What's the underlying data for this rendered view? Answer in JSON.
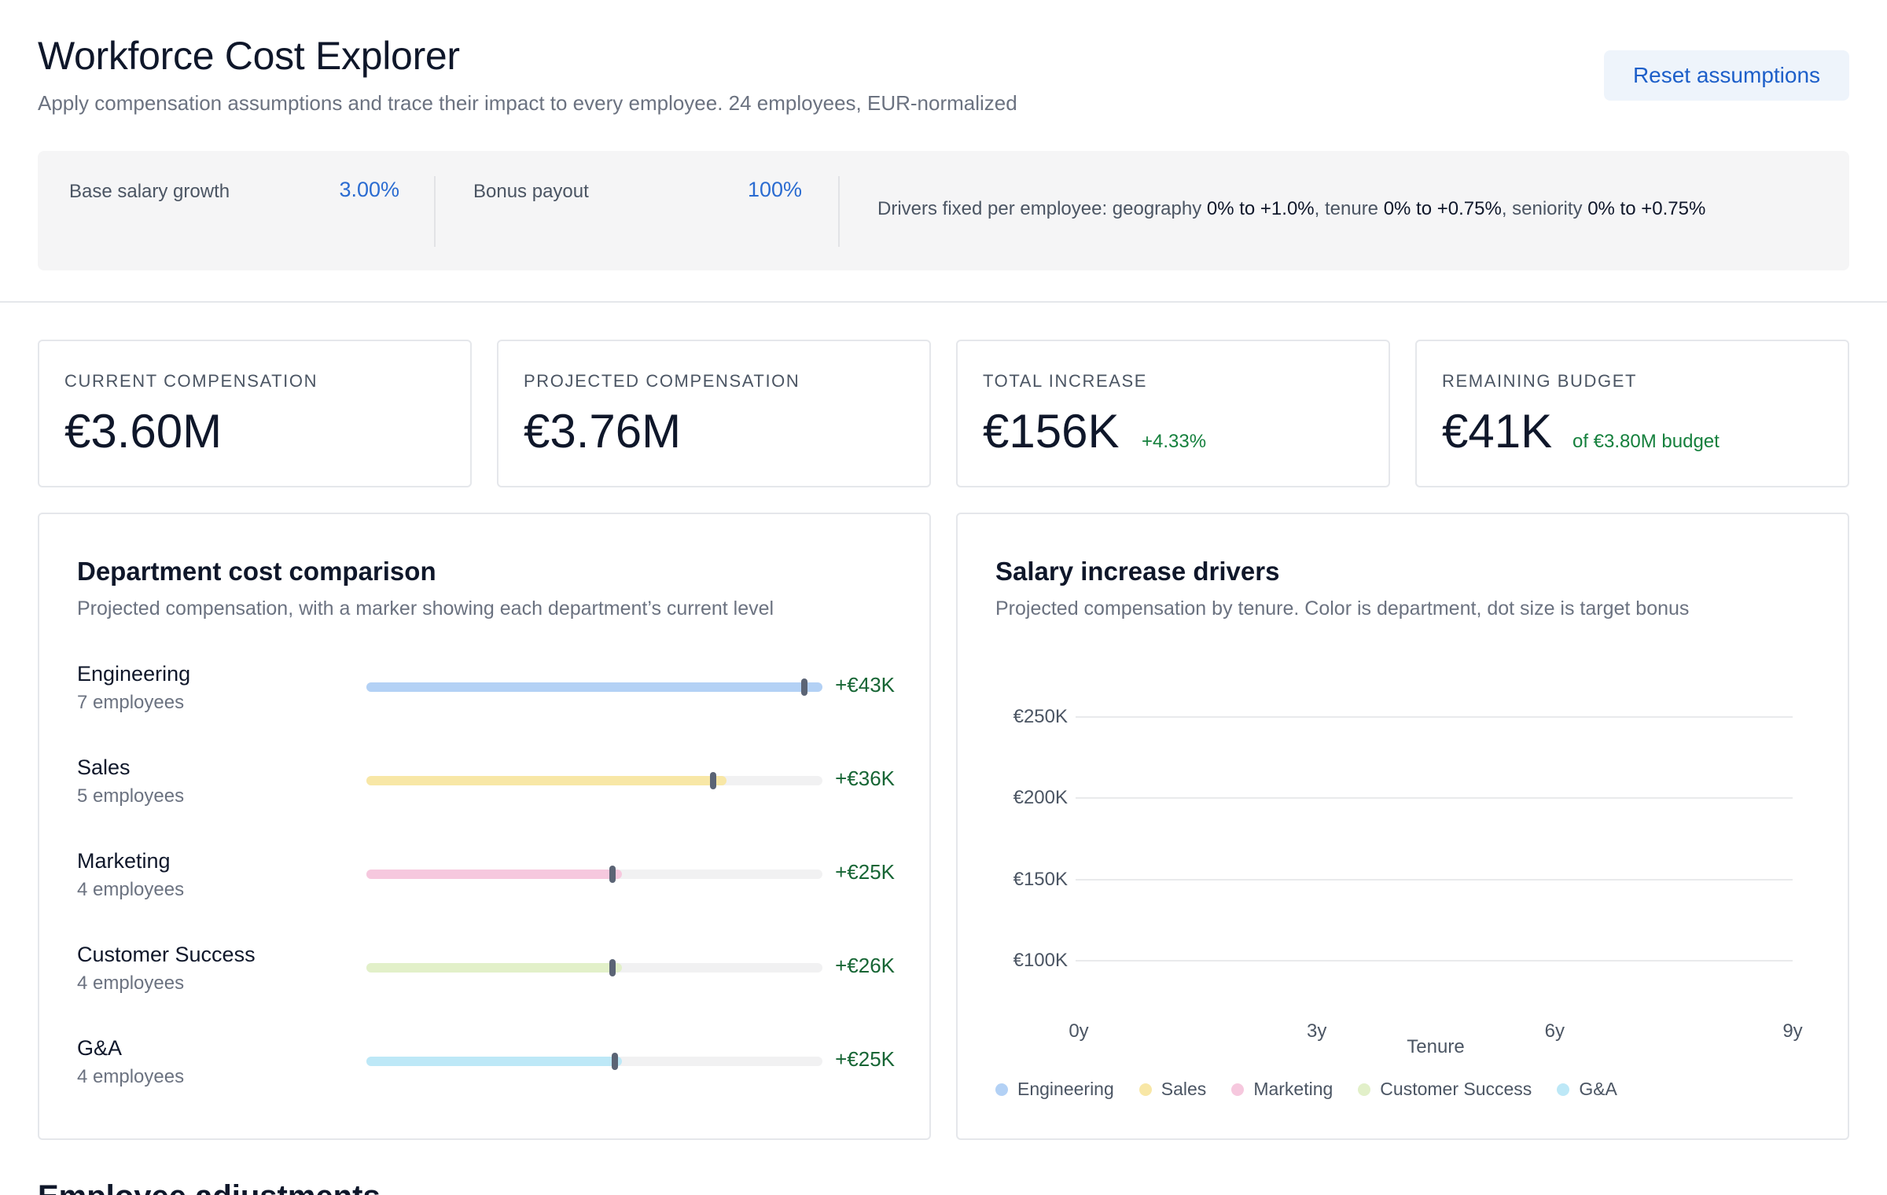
{
  "app": {
    "title": "Workforce Cost Explorer",
    "subtitle": "Apply compensation assumptions and trace their impact to every employee. 24 employees, EUR-normalized",
    "reset_label": "Reset assumptions"
  },
  "assumptions": {
    "salary_growth": {
      "label": "Base salary growth",
      "value": "3.00%"
    },
    "bonus_payout": {
      "label": "Bonus payout",
      "value": "100%"
    },
    "drivers": {
      "prefix": "Drivers fixed per employee: geography ",
      "geography_range": "0% to +1.0%",
      "tenure_label": ", tenure ",
      "tenure_range": "0% to +0.75%",
      "seniority_label": ", seniority ",
      "seniority_range": "0% to +0.75%"
    }
  },
  "kpis": {
    "current": {
      "label": "CURRENT COMPENSATION",
      "value": "€3.60M"
    },
    "projected": {
      "label": "PROJECTED COMPENSATION",
      "value": "€3.76M"
    },
    "increase": {
      "label": "TOTAL INCREASE",
      "value": "€156K",
      "delta": "+4.33%"
    },
    "remaining": {
      "label": "REMAINING BUDGET",
      "value": "€41K",
      "note": "of €3.80M budget"
    }
  },
  "dept_card": {
    "title": "Department cost comparison",
    "subtitle": "Projected compensation, with a marker showing each department’s current level",
    "departments": [
      {
        "name": "Engineering",
        "count": "7 employees",
        "delta": "+€43K",
        "color": "#b3d1f5",
        "projected_fraction": 1.0,
        "current_fraction": 0.96
      },
      {
        "name": "Sales",
        "count": "5 employees",
        "delta": "+€36K",
        "color": "#f8e7a6",
        "projected_fraction": 0.79,
        "current_fraction": 0.76
      },
      {
        "name": "Marketing",
        "count": "4 employees",
        "delta": "+€25K",
        "color": "#f6c8de",
        "projected_fraction": 0.56,
        "current_fraction": 0.54
      },
      {
        "name": "Customer Success",
        "count": "4 employees",
        "delta": "+€26K",
        "color": "#e2f0c9",
        "projected_fraction": 0.56,
        "current_fraction": 0.54
      },
      {
        "name": "G&A",
        "count": "4 employees",
        "delta": "+€25K",
        "color": "#bde8f7",
        "projected_fraction": 0.56,
        "current_fraction": 0.545
      }
    ]
  },
  "drivers_card": {
    "title": "Salary increase drivers",
    "subtitle": "Projected compensation by tenure. Color is department, dot size is target bonus"
  },
  "chart_data": {
    "type": "scatter",
    "title": "Salary increase drivers",
    "subtitle": "Projected compensation by tenure. Color is department, dot size is target bonus",
    "xlabel": "Tenure",
    "ylabel": "",
    "xlim": [
      0,
      9
    ],
    "ylim": [
      100000,
      250000
    ],
    "x_ticks": [
      {
        "value": 0,
        "label": "0y"
      },
      {
        "value": 3,
        "label": "3y"
      },
      {
        "value": 6,
        "label": "6y"
      },
      {
        "value": 9,
        "label": "9y"
      }
    ],
    "y_ticks": [
      {
        "value": 250000,
        "label": "€250K"
      },
      {
        "value": 200000,
        "label": "€200K"
      },
      {
        "value": 150000,
        "label": "€150K"
      },
      {
        "value": 100000,
        "label": "€100K"
      }
    ],
    "grid": true,
    "legend_position": "bottom-left",
    "series": [
      {
        "name": "Engineering",
        "color": "#b3d1f5",
        "points": []
      },
      {
        "name": "Sales",
        "color": "#f8e7a6",
        "points": []
      },
      {
        "name": "Marketing",
        "color": "#f6c8de",
        "points": []
      },
      {
        "name": "Customer Success",
        "color": "#e2f0c9",
        "points": []
      },
      {
        "name": "G&A",
        "color": "#bde8f7",
        "points": []
      }
    ]
  },
  "next_section": {
    "title": "Employee adjustments"
  }
}
